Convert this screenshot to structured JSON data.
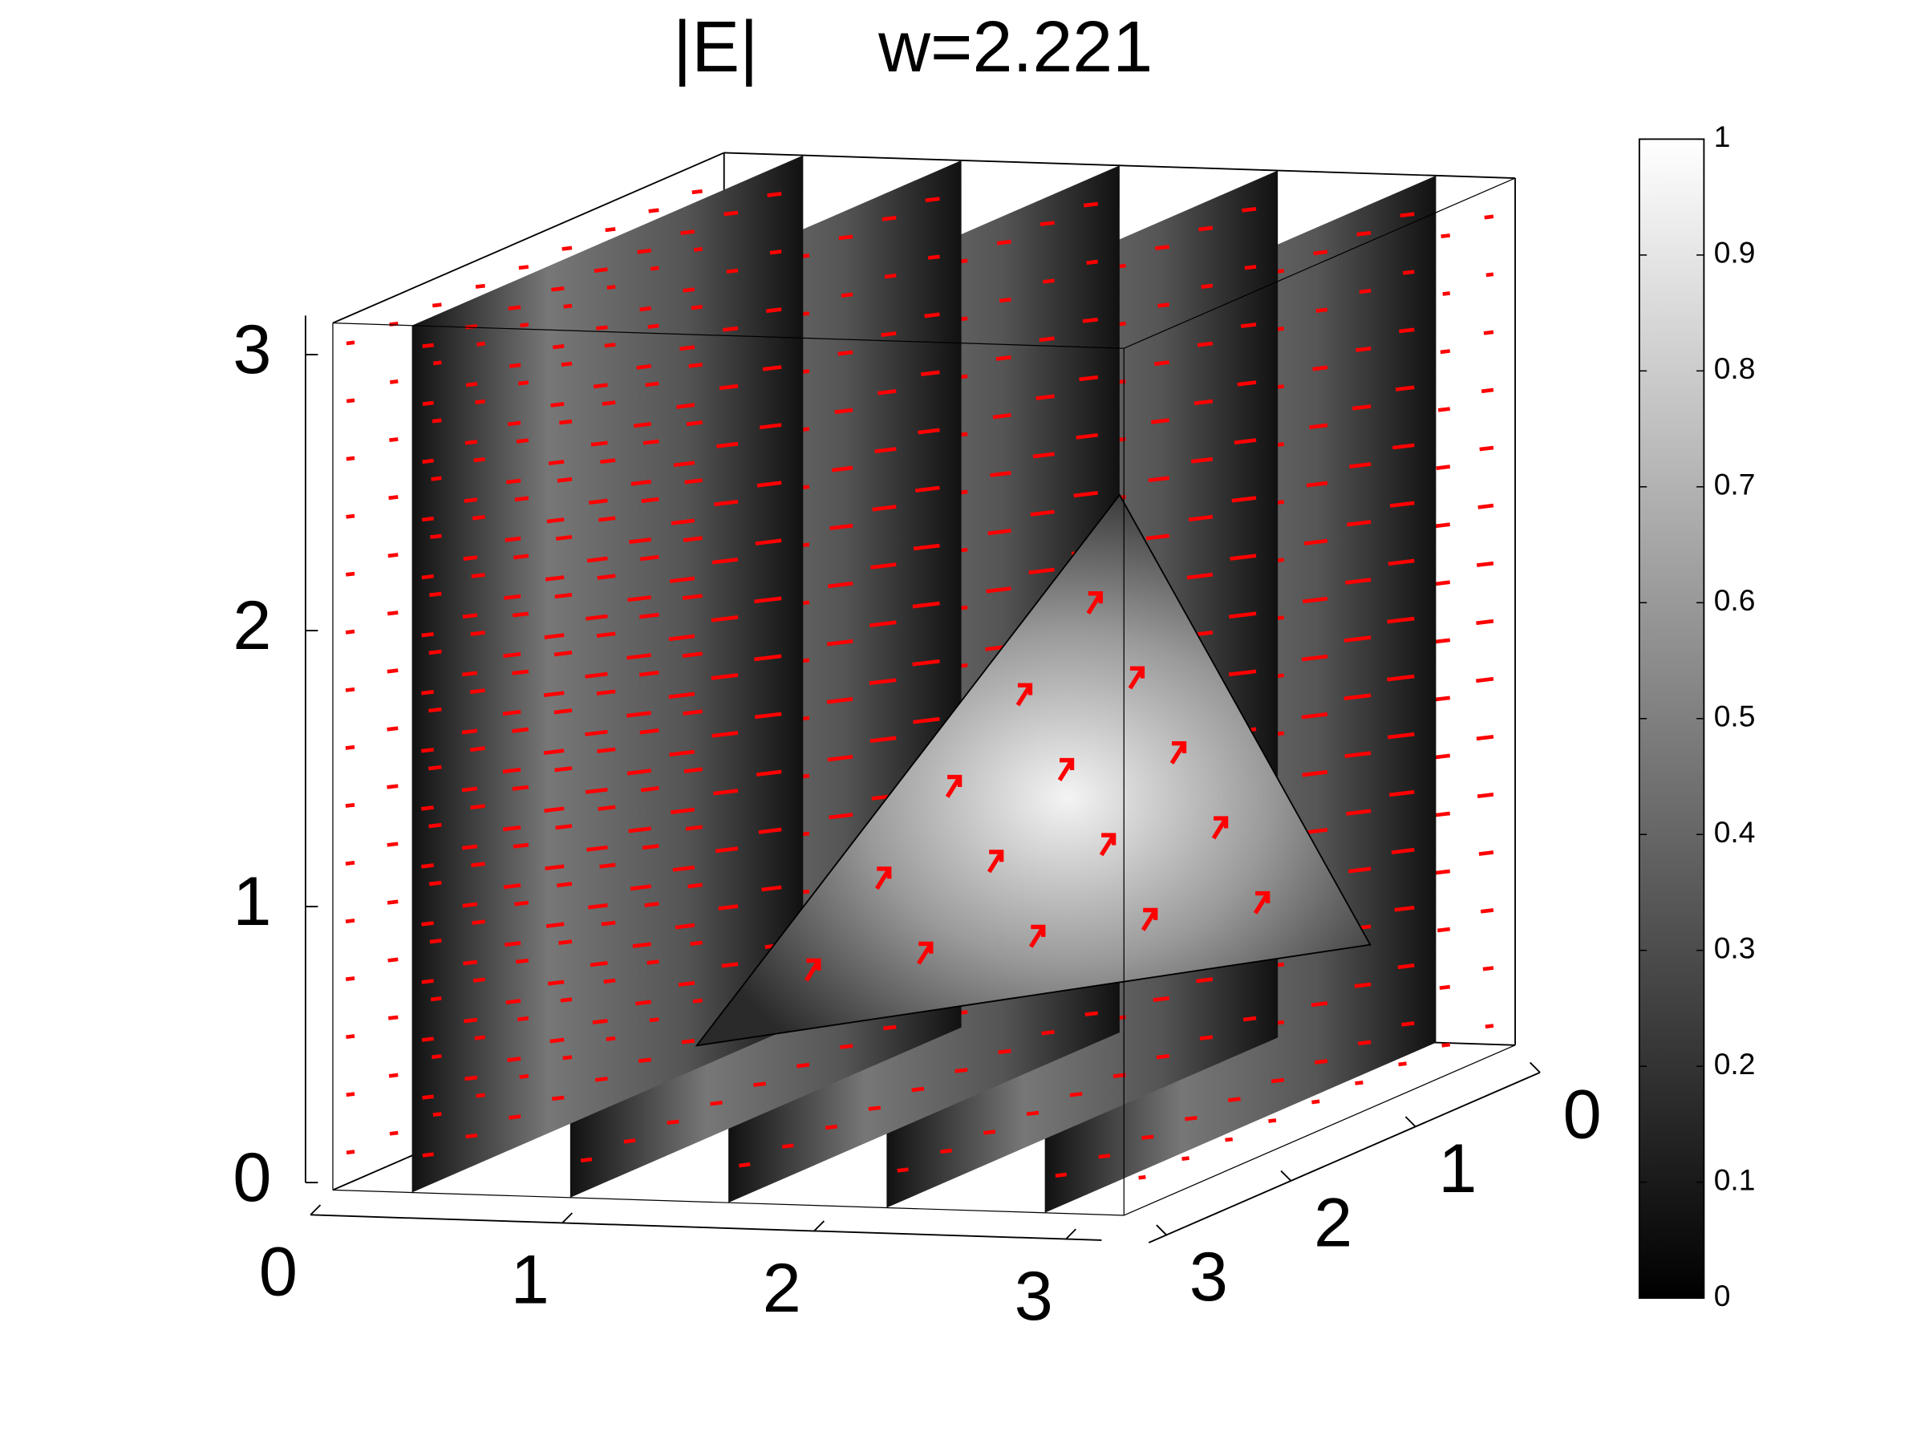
{
  "chart_data": {
    "type": "slice3d",
    "title": "|E|      w=2.221",
    "xlim": [
      0,
      3.1416
    ],
    "ylim": [
      0,
      3.1416
    ],
    "zlim": [
      0,
      3.1416
    ],
    "xticks": [
      0,
      1,
      2,
      3
    ],
    "yticks": [
      0,
      1,
      2,
      3
    ],
    "zticks": [
      0,
      1,
      2,
      3
    ],
    "clim": [
      0,
      1
    ],
    "cticks": [
      0,
      0.1,
      0.2,
      0.3,
      0.4,
      0.5,
      0.6,
      0.7,
      0.8,
      0.9,
      1
    ],
    "colormap": [
      "#000000",
      "#ffffff"
    ],
    "arrow_color": "#ff0000"
  }
}
